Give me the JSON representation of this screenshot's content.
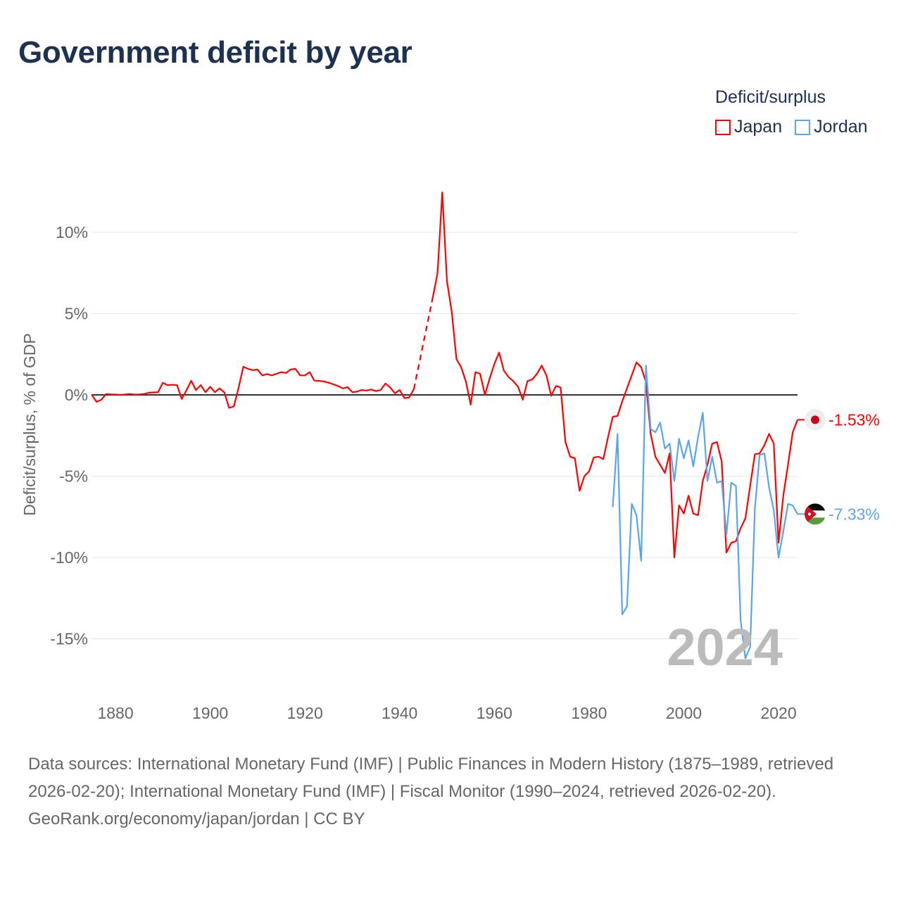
{
  "title": "Government deficit by year",
  "legend": {
    "title": "Deficit/surplus",
    "items": [
      {
        "label": "Japan",
        "color": "#ff0000"
      },
      {
        "label": "Jordan",
        "color": "#5aa5ea"
      }
    ]
  },
  "current_year_label": "2024",
  "chart_data": {
    "type": "line",
    "title": "Government deficit by year",
    "xlabel": "",
    "ylabel": "Deficit/surplus, % of GDP",
    "xlim": [
      1875,
      2024
    ],
    "ylim": [
      -18,
      14
    ],
    "x_ticks": [
      1880,
      1900,
      1920,
      1940,
      1960,
      1980,
      2000,
      2020
    ],
    "x_tick_labels": [
      "1880",
      "1900",
      "1920",
      "1940",
      "1960",
      "1980",
      "2000",
      "2020"
    ],
    "y_ticks": [
      10,
      5,
      0,
      -5,
      -10,
      -15
    ],
    "y_tick_labels": [
      "10%",
      "5%",
      "0%",
      "-5%",
      "-10%",
      "-15%"
    ],
    "grid": true,
    "legend_position": "top-right",
    "series": [
      {
        "name": "Japan",
        "color": "#ff0000",
        "start_year": 1875,
        "end_label": "-1.53%",
        "values": [
          0,
          -0.43,
          -0.3,
          0.05,
          0.03,
          0.02,
          0,
          0.02,
          0.05,
          0.02,
          0.03,
          0.05,
          0.13,
          0.15,
          0.17,
          0.74,
          0.6,
          0.62,
          0.6,
          -0.25,
          0.3,
          0.87,
          0.3,
          0.6,
          0.17,
          0.5,
          0.17,
          0.4,
          0.15,
          -0.8,
          -0.7,
          0.45,
          1.73,
          1.6,
          1.52,
          1.56,
          1.2,
          1.28,
          1.2,
          1.3,
          1.4,
          1.35,
          1.56,
          1.6,
          1.2,
          1.2,
          1.4,
          0.88,
          0.86,
          0.83,
          0.75,
          0.65,
          0.55,
          0.4,
          0.48,
          0.17,
          0.2,
          0.3,
          0.27,
          0.33,
          0.23,
          0.3,
          0.7,
          0.45,
          0.1,
          0.3,
          -0.2,
          -0.16,
          0.35,
          null,
          null,
          null,
          6.0,
          7.5,
          12.45,
          7.0,
          5.1,
          2.2,
          1.7,
          0.8,
          -0.6,
          1.4,
          1.3,
          0,
          1.0,
          1.9,
          2.6,
          1.5,
          1.1,
          0.85,
          0.5,
          -0.3,
          0.85,
          0.95,
          1.3,
          1.8,
          1.2,
          -0.05,
          0.55,
          0.45,
          -2.9,
          -3.8,
          -3.9,
          -5.9,
          -5.0,
          -4.7,
          -3.85,
          -3.8,
          -3.95,
          -2.6,
          -1.35,
          -1.3,
          -0.4,
          0.4,
          1.2,
          2.0,
          1.7,
          0.8,
          -2.4,
          -3.8,
          -4.3,
          -4.8,
          -3.6,
          -10.0,
          -6.8,
          -7.3,
          -6.2,
          -7.3,
          -7.4,
          -5.3,
          -4.3,
          -3.0,
          -2.9,
          -4.1,
          -9.7,
          -9.1,
          -9.0,
          -8.2,
          -7.6,
          -5.6,
          -3.65,
          -3.6,
          -3.1,
          -2.4,
          -3.0,
          -9.1,
          -6.2,
          -4.3,
          -2.3,
          -1.53
        ]
      },
      {
        "name": "Jordan",
        "color": "#5aa5ea",
        "start_year": 1985,
        "end_label": "-7.33%",
        "values": [
          -6.9,
          -2.4,
          -13.5,
          -13.0,
          -6.7,
          -7.4,
          -10.2,
          1.8,
          -2.1,
          -2.3,
          -1.7,
          -3.3,
          -3.0,
          -5.3,
          -2.7,
          -3.9,
          -2.8,
          -4.4,
          -2.6,
          -1.1,
          -5.3,
          -3.8,
          -5.4,
          -5.3,
          -8.6,
          -5.4,
          -5.6,
          -13.9,
          -16.2,
          -15.5,
          -7.0,
          -3.7,
          -3.6,
          -5.7,
          -7.1,
          -10.0,
          -8.4,
          -6.7,
          -6.8,
          -7.33
        ]
      }
    ]
  },
  "footer": {
    "sources": "Data sources: International Monetary Fund (IMF) | Public Finances in Modern History (1875–1989, retrieved 2026-02-20); International Monetary Fund (IMF) | Fiscal Monitor (1990–2024, retrieved 2026-02-20).",
    "credit": "GeoRank.org/economy/japan/jordan | CC BY"
  }
}
